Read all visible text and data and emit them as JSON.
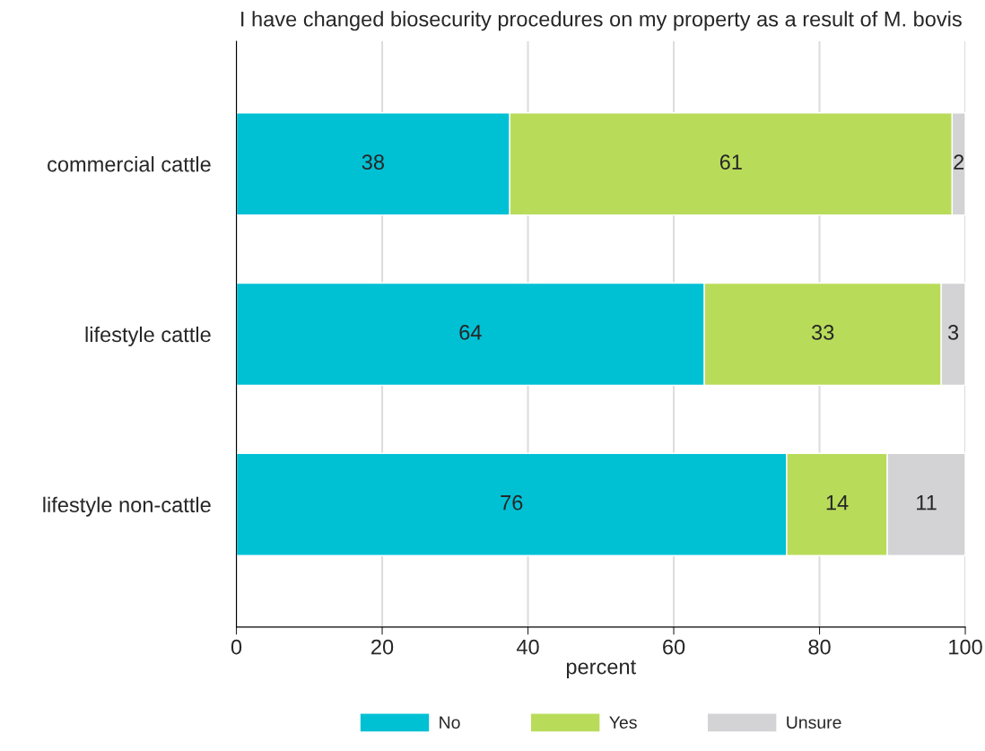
{
  "chart_data": {
    "type": "bar",
    "orientation": "horizontal",
    "stacked": true,
    "title": "I have changed biosecurity procedures on my property as a result of M. bovis",
    "xlabel": "percent",
    "categories": [
      "commercial cattle",
      "lifestyle cattle",
      "lifestyle non-cattle"
    ],
    "series": [
      {
        "name": "No",
        "color": "#00c0d4",
        "values": [
          37.5,
          64.2,
          75.5
        ],
        "value_labels": [
          "38",
          "64",
          "76"
        ]
      },
      {
        "name": "Yes",
        "color": "#b8dc5a",
        "values": [
          60.7,
          32.5,
          13.8
        ],
        "value_labels": [
          "61",
          "33",
          "14"
        ]
      },
      {
        "name": "Unsure",
        "color": "#d3d3d5",
        "values": [
          1.8,
          3.3,
          10.7
        ],
        "value_labels": [
          "2",
          "3",
          "11"
        ]
      }
    ],
    "xlim": [
      0,
      100
    ],
    "xticks": [
      0,
      20,
      40,
      60,
      80,
      100
    ],
    "grid": "x",
    "legend": "bottom"
  }
}
